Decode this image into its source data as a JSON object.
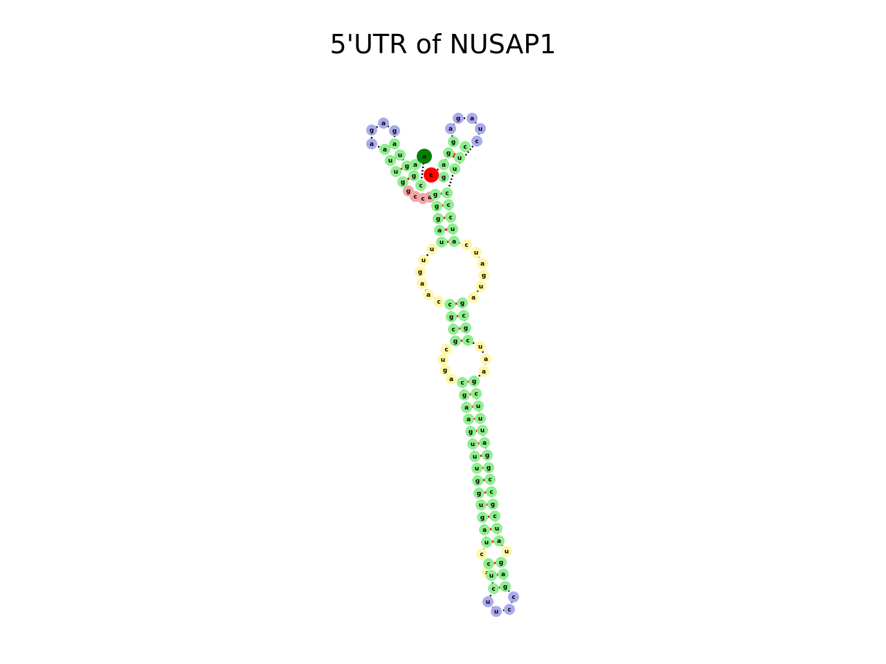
{
  "title": "5'UTR of NUSAP1",
  "colors": {
    "stem": "#90ee90",
    "hairpin_loop": "#aaaaee",
    "interior_loop": "#fff7a8",
    "unpaired_5prime": "#f4a6a6",
    "five_prime_marker": "#008000",
    "three_prime_marker": "#ff0000",
    "pair_bond": "#ff0000",
    "backbone": "#000000"
  },
  "structure": {
    "left_hairpin": {
      "stem_5p": [
        "a",
        "u",
        "g",
        "g",
        "c"
      ],
      "loop": [
        "g",
        "a",
        "g",
        "a"
      ],
      "stem_3p": [
        "a",
        "u",
        "u",
        "g",
        "a"
      ],
      "unpaired": [
        "g",
        "c",
        "c",
        "a"
      ]
    },
    "five_prime_end": "a",
    "three_prime_end": "c",
    "right_hairpin": {
      "stem_5p": [
        "a",
        "g",
        "g"
      ],
      "loop": [
        "a",
        "g",
        "a",
        "u",
        "c"
      ],
      "stem_3p": [
        "c",
        "u",
        "u"
      ]
    },
    "main_stem_1": {
      "left": [
        "g",
        "g",
        "g",
        "a",
        "u"
      ],
      "right": [
        "c",
        "c",
        "c",
        "u",
        "a"
      ]
    },
    "interior_loop_1": {
      "left": [
        "u",
        "u",
        "g",
        "a",
        "a",
        "c"
      ],
      "right": [
        "c",
        "u",
        "a",
        "g",
        "u",
        "a"
      ]
    },
    "main_stem_2": {
      "left": [
        "c",
        "g",
        "c",
        "g"
      ],
      "right": [
        "g",
        "c",
        "g",
        "c"
      ]
    },
    "interior_loop_2": {
      "left": [
        "c",
        "u",
        "g",
        "a"
      ],
      "right": [
        "u",
        "a",
        "a"
      ]
    },
    "main_stem_3": {
      "left": [
        "c",
        "g",
        "a",
        "a",
        "g",
        "u",
        "u",
        "u",
        "g",
        "g",
        "u",
        "g",
        "a",
        "u"
      ],
      "right": [
        "g",
        "c",
        "u",
        "u",
        "u",
        "a",
        "g",
        "g",
        "c",
        "c",
        "g",
        "c",
        "u",
        "a"
      ]
    },
    "interior_loop_3": {
      "left": [
        "c",
        "a"
      ],
      "right": [
        "u"
      ]
    },
    "terminal_stem": {
      "left": [
        "c",
        "u",
        "c"
      ],
      "right": [
        "g",
        "a",
        "g"
      ]
    },
    "terminal_loop": [
      "u",
      "u",
      "c",
      "c"
    ]
  }
}
